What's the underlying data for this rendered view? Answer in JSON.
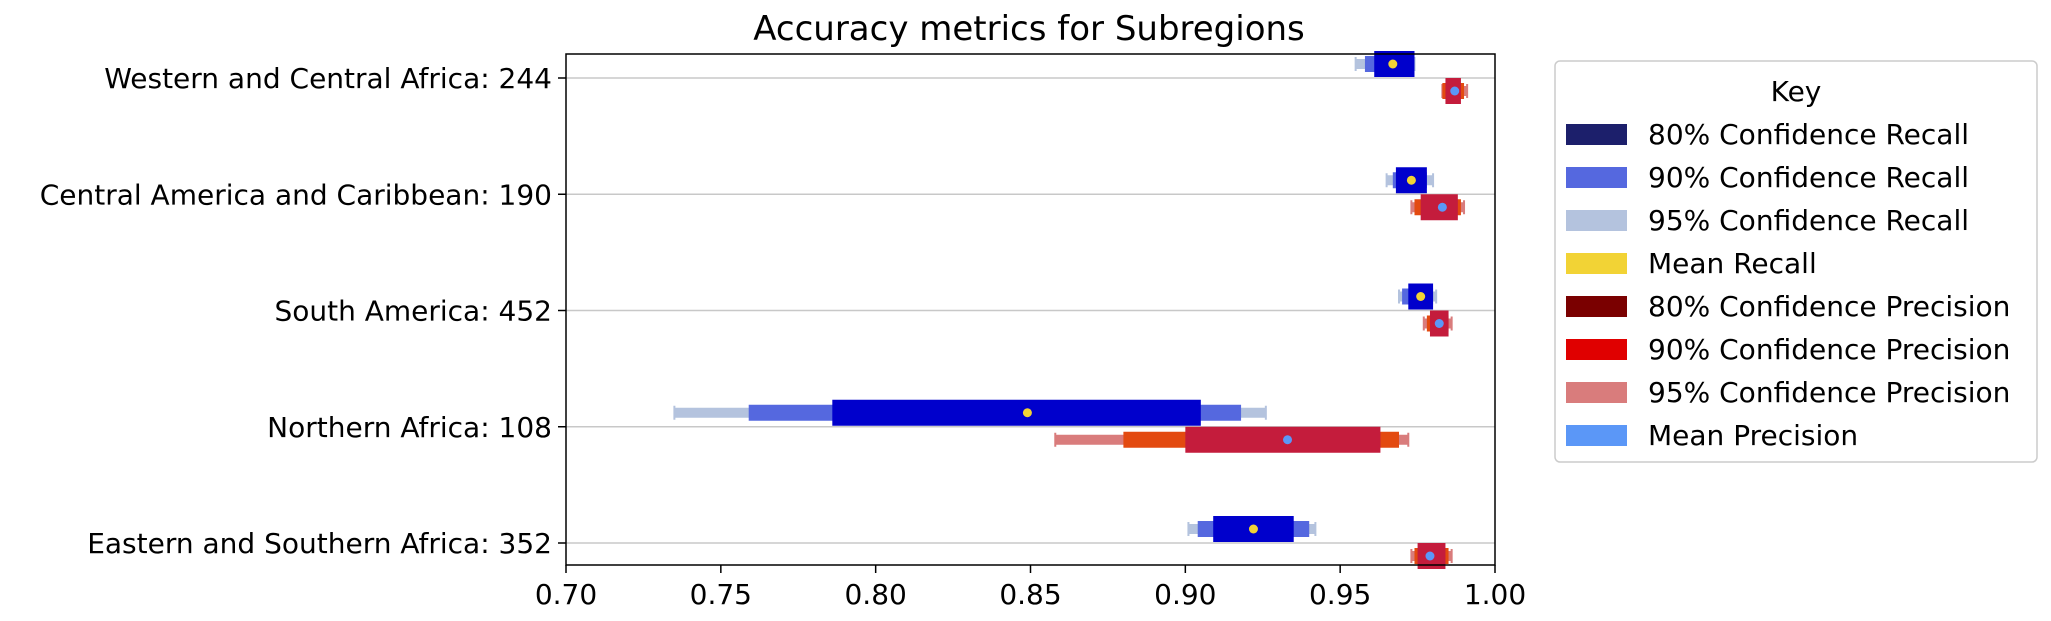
{
  "chart_data": {
    "type": "interval",
    "title": "Accuracy metrics for Subregions",
    "xlabel": "",
    "ylabel": "",
    "xlim": [
      0.7,
      1.0
    ],
    "xticks": [
      "0.70",
      "0.75",
      "0.80",
      "0.85",
      "0.90",
      "0.95",
      "1.00"
    ],
    "grid": "horizontal",
    "legend_position": "right",
    "legend_title": "Key",
    "legend": [
      {
        "key": "r80",
        "label": "80% Confidence Recall",
        "color": "#1c1f6b"
      },
      {
        "key": "r90",
        "label": "90% Confidence Recall",
        "color": "#5568df"
      },
      {
        "key": "r95",
        "label": "95% Confidence Recall",
        "color": "#b4c3de"
      },
      {
        "key": "rmean",
        "label": "Mean Recall",
        "color": "#f2d335"
      },
      {
        "key": "p80",
        "label": "80% Confidence Precision",
        "color": "#7a0000"
      },
      {
        "key": "p90",
        "label": "90% Confidence Precision",
        "color": "#e00000"
      },
      {
        "key": "p95",
        "label": "95% Confidence Precision",
        "color": "#d97c7c"
      },
      {
        "key": "pmean",
        "label": "Mean Precision",
        "color": "#5b97f7"
      }
    ],
    "plot_colors": {
      "recall_80": "#0000cc",
      "recall_90": "#5568df",
      "recall_95": "#b4c3de",
      "recall_mean": "#f2d335",
      "precision_80": "#c41c3c",
      "precision_90": "#e34a10",
      "precision_95": "#d97c7c",
      "precision_mean": "#5b97f7"
    },
    "categories": [
      "Western and Central Africa: 244",
      "Central America and Caribbean: 190",
      "South America: 452",
      "Northern Africa: 108",
      "Eastern and Southern Africa: 352"
    ],
    "series": [
      {
        "recall": {
          "ci95": [
            0.955,
            0.974
          ],
          "ci90": [
            0.958,
            0.972
          ],
          "ci80": [
            0.961,
            0.974
          ],
          "mean": 0.967
        },
        "precision": {
          "ci95": [
            0.983,
            0.991
          ],
          "ci90": [
            0.983,
            0.99
          ],
          "ci80": [
            0.984,
            0.989
          ],
          "mean": 0.987
        }
      },
      {
        "recall": {
          "ci95": [
            0.965,
            0.98
          ],
          "ci90": [
            0.967,
            0.978
          ],
          "ci80": [
            0.968,
            0.978
          ],
          "mean": 0.973
        },
        "precision": {
          "ci95": [
            0.973,
            0.99
          ],
          "ci90": [
            0.974,
            0.989
          ],
          "ci80": [
            0.976,
            0.988
          ],
          "mean": 0.983
        }
      },
      {
        "recall": {
          "ci95": [
            0.969,
            0.981
          ],
          "ci90": [
            0.97,
            0.98
          ],
          "ci80": [
            0.972,
            0.98
          ],
          "mean": 0.976
        },
        "precision": {
          "ci95": [
            0.977,
            0.986
          ],
          "ci90": [
            0.978,
            0.985
          ],
          "ci80": [
            0.979,
            0.985
          ],
          "mean": 0.982
        }
      },
      {
        "recall": {
          "ci95": [
            0.735,
            0.926
          ],
          "ci90": [
            0.759,
            0.918
          ],
          "ci80": [
            0.786,
            0.905
          ],
          "mean": 0.849
        },
        "precision": {
          "ci95": [
            0.858,
            0.972
          ],
          "ci90": [
            0.88,
            0.969
          ],
          "ci80": [
            0.9,
            0.963
          ],
          "mean": 0.933
        }
      },
      {
        "recall": {
          "ci95": [
            0.901,
            0.942
          ],
          "ci90": [
            0.904,
            0.94
          ],
          "ci80": [
            0.909,
            0.935
          ],
          "mean": 0.922
        },
        "precision": {
          "ci95": [
            0.973,
            0.986
          ],
          "ci90": [
            0.974,
            0.985
          ],
          "ci80": [
            0.975,
            0.984
          ],
          "mean": 0.979
        }
      }
    ]
  }
}
